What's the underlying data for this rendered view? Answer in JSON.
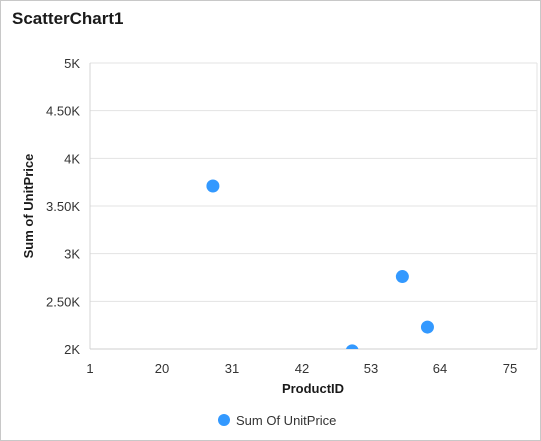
{
  "title": "ScatterChart1",
  "chart_data": {
    "type": "scatter",
    "xlabel": "ProductID",
    "ylabel": "Sum of UnitPrice",
    "x_ticks": [
      "1",
      "20",
      "31",
      "42",
      "53",
      "64",
      "75"
    ],
    "y_ticks": [
      "2K",
      "2.50K",
      "3K",
      "3.50K",
      "4K",
      "4.50K",
      "5K"
    ],
    "series": [
      {
        "name": "Sum Of UnitPrice",
        "color": "#3399ff",
        "x": [
          28,
          50,
          58,
          62
        ],
        "y": [
          3710,
          1980,
          2760,
          2230
        ]
      }
    ],
    "legend_position": "bottom",
    "grid": true
  }
}
